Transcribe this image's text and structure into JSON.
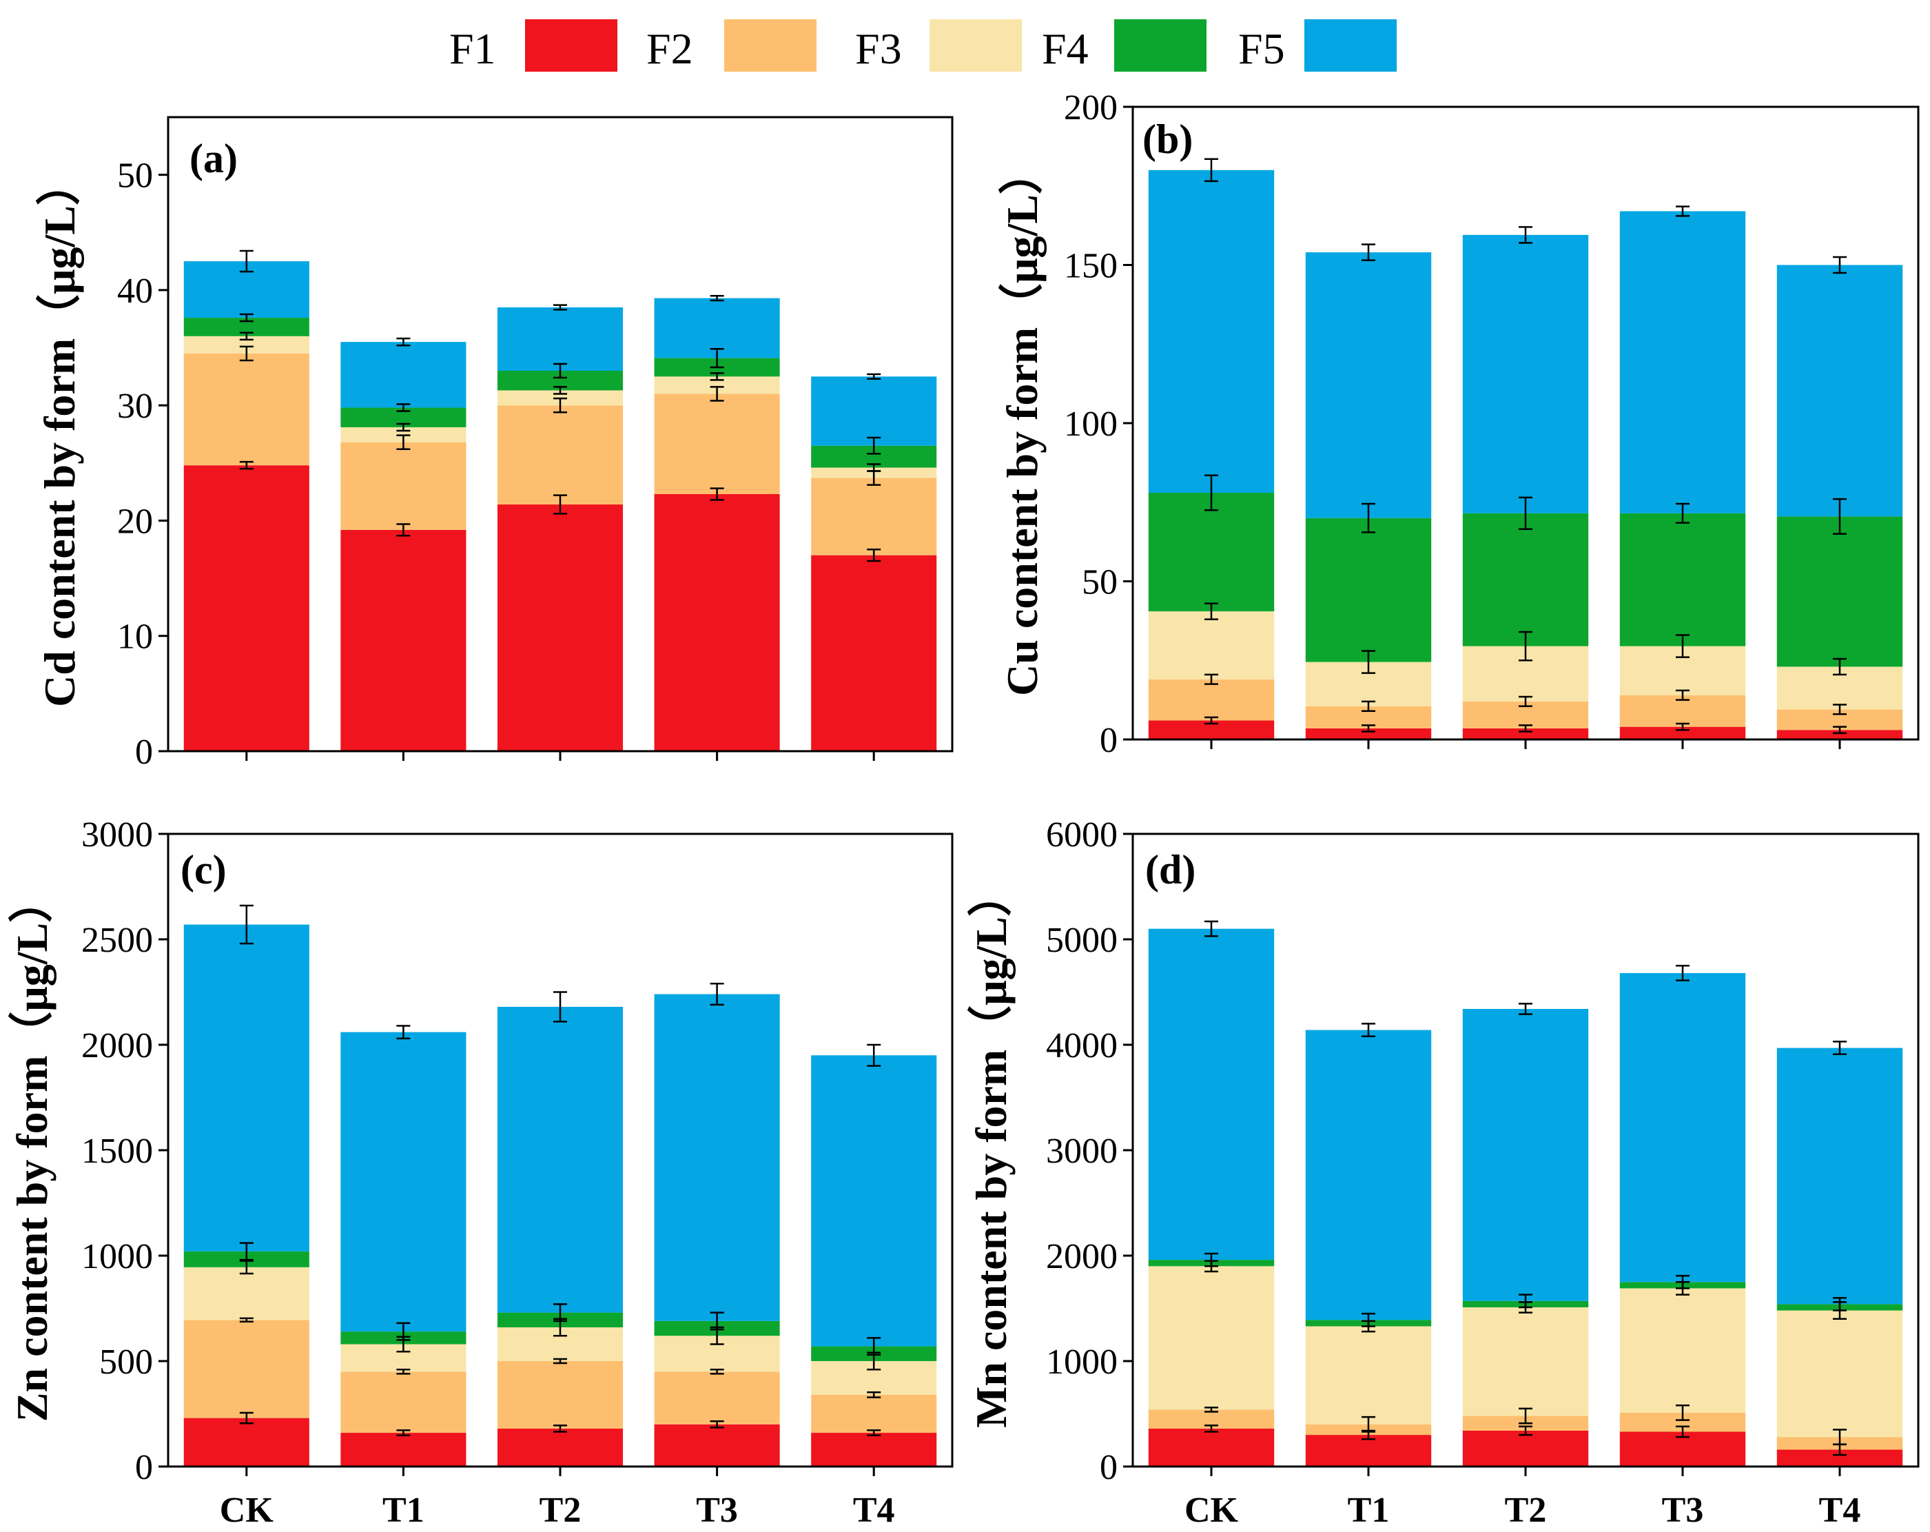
{
  "legend": [
    {
      "name": "F1",
      "color": "#F0141E"
    },
    {
      "name": "F2",
      "color": "#FDBF6F"
    },
    {
      "name": "F3",
      "color": "#F9E5A9"
    },
    {
      "name": "F4",
      "color": "#0CA62E"
    },
    {
      "name": "F5",
      "color": "#04A7E3"
    }
  ],
  "chart_data": [
    {
      "type": "bar",
      "stacked": true,
      "tag": "(a)",
      "ylabel": "Cd content by form（μg/L）",
      "ylim": [
        0,
        55
      ],
      "yticks": [
        0,
        10,
        20,
        30,
        40,
        50
      ],
      "categories": [
        "CK",
        "T1",
        "T2",
        "T3",
        "T4"
      ],
      "show_categories": false,
      "series": [
        {
          "name": "F1",
          "values": [
            24.8,
            19.2,
            21.4,
            22.3,
            17.0
          ],
          "errors": [
            0.3,
            0.5,
            0.8,
            0.5,
            0.5
          ]
        },
        {
          "name": "F2",
          "values": [
            9.7,
            7.6,
            8.6,
            8.7,
            6.7
          ],
          "errors": [
            0.6,
            0.6,
            0.6,
            0.6,
            0.6
          ]
        },
        {
          "name": "F3",
          "values": [
            1.5,
            1.3,
            1.3,
            1.5,
            0.9
          ],
          "errors": [
            0.3,
            0.3,
            0.3,
            0.3,
            0.3
          ]
        },
        {
          "name": "F4",
          "values": [
            1.6,
            1.7,
            1.7,
            1.6,
            1.9
          ],
          "errors": [
            0.3,
            0.3,
            0.6,
            0.8,
            0.7
          ]
        },
        {
          "name": "F5",
          "values": [
            4.9,
            5.7,
            5.5,
            5.2,
            6.0
          ],
          "errors": [
            0.9,
            0.3,
            0.2,
            0.2,
            0.2
          ]
        }
      ]
    },
    {
      "type": "bar",
      "stacked": true,
      "tag": "(b)",
      "ylabel": "Cu content by form（μg/L）",
      "ylim": [
        0,
        200
      ],
      "yticks": [
        0,
        50,
        100,
        150,
        200
      ],
      "categories": [
        "CK",
        "T1",
        "T2",
        "T3",
        "T4"
      ],
      "show_categories": false,
      "series": [
        {
          "name": "F1",
          "values": [
            6,
            3.5,
            3.5,
            4,
            3
          ],
          "errors": [
            1,
            1,
            1,
            1,
            1
          ]
        },
        {
          "name": "F2",
          "values": [
            13,
            7,
            8.5,
            10,
            6.5
          ],
          "errors": [
            1.5,
            1.5,
            1.5,
            1.5,
            1.5
          ]
        },
        {
          "name": "F3",
          "values": [
            21.5,
            14,
            17.5,
            15.5,
            13.5
          ],
          "errors": [
            2.5,
            3.5,
            4.5,
            3.5,
            2.5
          ]
        },
        {
          "name": "F4",
          "values": [
            37.5,
            45.5,
            42,
            42,
            47.5
          ],
          "errors": [
            5.5,
            4.5,
            5,
            3,
            5.5
          ]
        },
        {
          "name": "F5",
          "values": [
            102,
            84,
            88,
            95.5,
            79.5
          ],
          "errors": [
            3.5,
            2.5,
            2.5,
            1.5,
            2.5
          ]
        }
      ]
    },
    {
      "type": "bar",
      "stacked": true,
      "tag": "(c)",
      "ylabel": "Zn content by form（μg/L）",
      "ylim": [
        0,
        3000
      ],
      "yticks": [
        0,
        500,
        1000,
        1500,
        2000,
        2500,
        3000
      ],
      "categories": [
        "CK",
        "T1",
        "T2",
        "T3",
        "T4"
      ],
      "show_categories": true,
      "series": [
        {
          "name": "F1",
          "values": [
            230,
            160,
            180,
            200,
            160
          ],
          "errors": [
            25,
            12,
            15,
            15,
            12
          ]
        },
        {
          "name": "F2",
          "values": [
            465,
            290,
            320,
            250,
            180
          ],
          "errors": [
            8,
            10,
            10,
            10,
            12
          ]
        },
        {
          "name": "F3",
          "values": [
            250,
            130,
            160,
            170,
            160
          ],
          "errors": [
            30,
            35,
            40,
            40,
            40
          ]
        },
        {
          "name": "F4",
          "values": [
            75,
            60,
            70,
            70,
            70
          ],
          "errors": [
            40,
            40,
            40,
            40,
            40
          ]
        },
        {
          "name": "F5",
          "values": [
            1550,
            1420,
            1450,
            1550,
            1380
          ],
          "errors": [
            90,
            30,
            70,
            50,
            50
          ]
        }
      ]
    },
    {
      "type": "bar",
      "stacked": true,
      "tag": "(d)",
      "ylabel": "Mn content by form（μg/L）",
      "ylim": [
        0,
        6000
      ],
      "yticks": [
        0,
        1000,
        2000,
        3000,
        4000,
        5000,
        6000
      ],
      "categories": [
        "CK",
        "T1",
        "T2",
        "T3",
        "T4"
      ],
      "show_categories": true,
      "series": [
        {
          "name": "F1",
          "values": [
            360,
            300,
            340,
            330,
            160
          ],
          "errors": [
            30,
            40,
            40,
            50,
            50
          ]
        },
        {
          "name": "F2",
          "values": [
            180,
            100,
            140,
            180,
            120
          ],
          "errors": [
            20,
            70,
            70,
            70,
            70
          ]
        },
        {
          "name": "F3",
          "values": [
            1360,
            930,
            1030,
            1180,
            1200
          ],
          "errors": [
            50,
            50,
            50,
            60,
            80
          ]
        },
        {
          "name": "F4",
          "values": [
            60,
            60,
            60,
            60,
            60
          ],
          "errors": [
            60,
            60,
            60,
            60,
            60
          ]
        },
        {
          "name": "F5",
          "values": [
            3140,
            2750,
            2770,
            2930,
            2430
          ],
          "errors": [
            70,
            60,
            50,
            70,
            60
          ]
        }
      ]
    }
  ]
}
